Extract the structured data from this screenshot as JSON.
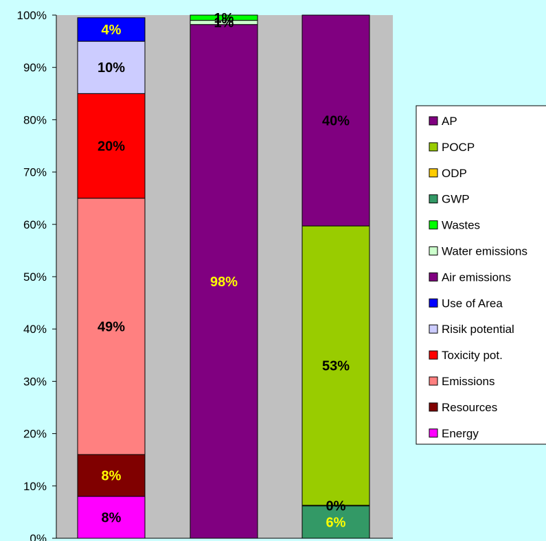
{
  "chart_data": {
    "type": "bar",
    "stacked": true,
    "normalized": true,
    "x": [
      "",
      "",
      ""
    ],
    "ylim": [
      0,
      100
    ],
    "yticks": [
      0,
      10,
      20,
      30,
      40,
      50,
      60,
      70,
      80,
      90,
      100
    ],
    "ytick_labels": [
      "0%",
      "10%",
      "20%",
      "30%",
      "40%",
      "50%",
      "60%",
      "70%",
      "80%",
      "90%",
      "100%"
    ],
    "grid": false,
    "legend_position": "right",
    "plot_background": "#c0c0c0",
    "page_background": "#ccffff",
    "series": [
      {
        "name": "Energy",
        "color": "#ff00ff",
        "values": [
          8,
          0,
          0
        ],
        "labels": [
          "8%",
          "",
          ""
        ],
        "label_color": "#000000"
      },
      {
        "name": "Resources",
        "color": "#800000",
        "values": [
          8,
          0,
          0
        ],
        "labels": [
          "8%",
          "",
          ""
        ],
        "label_color": "#ffff00"
      },
      {
        "name": "Emissions",
        "color": "#ff8080",
        "values": [
          49,
          0,
          0
        ],
        "labels": [
          "49%",
          "",
          ""
        ],
        "label_color": "#000000"
      },
      {
        "name": "Toxicity pot.",
        "color": "#ff0000",
        "values": [
          20,
          0,
          0
        ],
        "labels": [
          "20%",
          "",
          ""
        ],
        "label_color": "#000000"
      },
      {
        "name": "Risik potential",
        "color": "#ccccff",
        "values": [
          10,
          0,
          0
        ],
        "labels": [
          "10%",
          "",
          ""
        ],
        "label_color": "#000000"
      },
      {
        "name": "Use of Area",
        "color": "#0000ff",
        "values": [
          4.5,
          0,
          0
        ],
        "labels": [
          "4%",
          "",
          ""
        ],
        "label_color": "#ffff00"
      },
      {
        "name": "Air emissions",
        "color": "#800080",
        "values": [
          0,
          98.2,
          0
        ],
        "labels": [
          "",
          "98%",
          ""
        ],
        "label_color": "#ffff00"
      },
      {
        "name": "Water emissions",
        "color": "#ccffcc",
        "values": [
          0,
          0.8,
          0
        ],
        "labels": [
          "",
          "1%",
          ""
        ],
        "label_color": "#000000"
      },
      {
        "name": "Wastes",
        "color": "#00ff00",
        "values": [
          0,
          1.0,
          0
        ],
        "labels": [
          "",
          "1%",
          ""
        ],
        "label_color": "#000000"
      },
      {
        "name": "GWP",
        "color": "#339966",
        "values": [
          0,
          0,
          6.2
        ],
        "labels": [
          "",
          "",
          "6%"
        ],
        "label_color": "#ffff00"
      },
      {
        "name": "ODP",
        "color": "#ffcc00",
        "values": [
          0,
          0,
          0.1
        ],
        "labels": [
          "",
          "",
          "0%"
        ],
        "label_color": "#000000"
      },
      {
        "name": "POCP",
        "color": "#99cc00",
        "values": [
          0,
          0,
          53.4
        ],
        "labels": [
          "",
          "",
          "53%"
        ],
        "label_color": "#000000"
      },
      {
        "name": "AP",
        "color": "#800080",
        "values": [
          0,
          0,
          40.3
        ],
        "labels": [
          "",
          "",
          "40%"
        ],
        "label_color": "#000000",
        "label_weight": "normal"
      }
    ],
    "legend_order": [
      "AP",
      "POCP",
      "ODP",
      "GWP",
      "Wastes",
      "Water emissions",
      "Air emissions",
      "Use of Area",
      "Risik potential",
      "Toxicity pot.",
      "Emissions",
      "Resources",
      "Energy"
    ]
  }
}
